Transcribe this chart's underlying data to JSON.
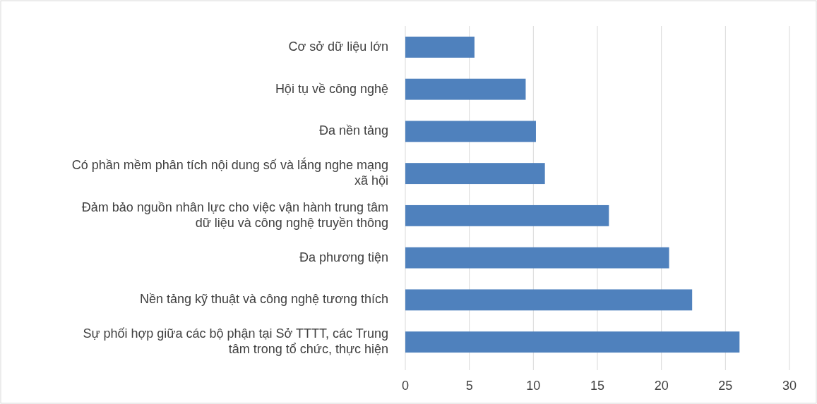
{
  "chart_data": {
    "type": "bar",
    "orientation": "horizontal",
    "categories": [
      "Cơ sở dữ liệu lớn",
      "Hội tụ về công nghệ",
      "Đa nền tảng",
      "Có phần mềm phân tích nội dung số và lắng nghe mạng xã hội",
      "Đảm bảo nguồn nhân lực cho việc vận hành trung tâm dữ liệu và công nghệ truyền thông",
      "Đa phương tiện",
      "Nền tảng kỹ thuật và công nghệ tương thích",
      "Sự phối hợp giữa các bộ phận tại Sở TTTT, các Trung tâm trong tổ chức, thực hiện"
    ],
    "values": [
      5.4,
      9.4,
      10.2,
      10.9,
      15.9,
      20.6,
      22.4,
      26.1
    ],
    "color": "#4f81bd",
    "xlim": [
      0,
      30
    ],
    "xticks": [
      0,
      5,
      10,
      15,
      20,
      25,
      30
    ],
    "grid": "x"
  }
}
